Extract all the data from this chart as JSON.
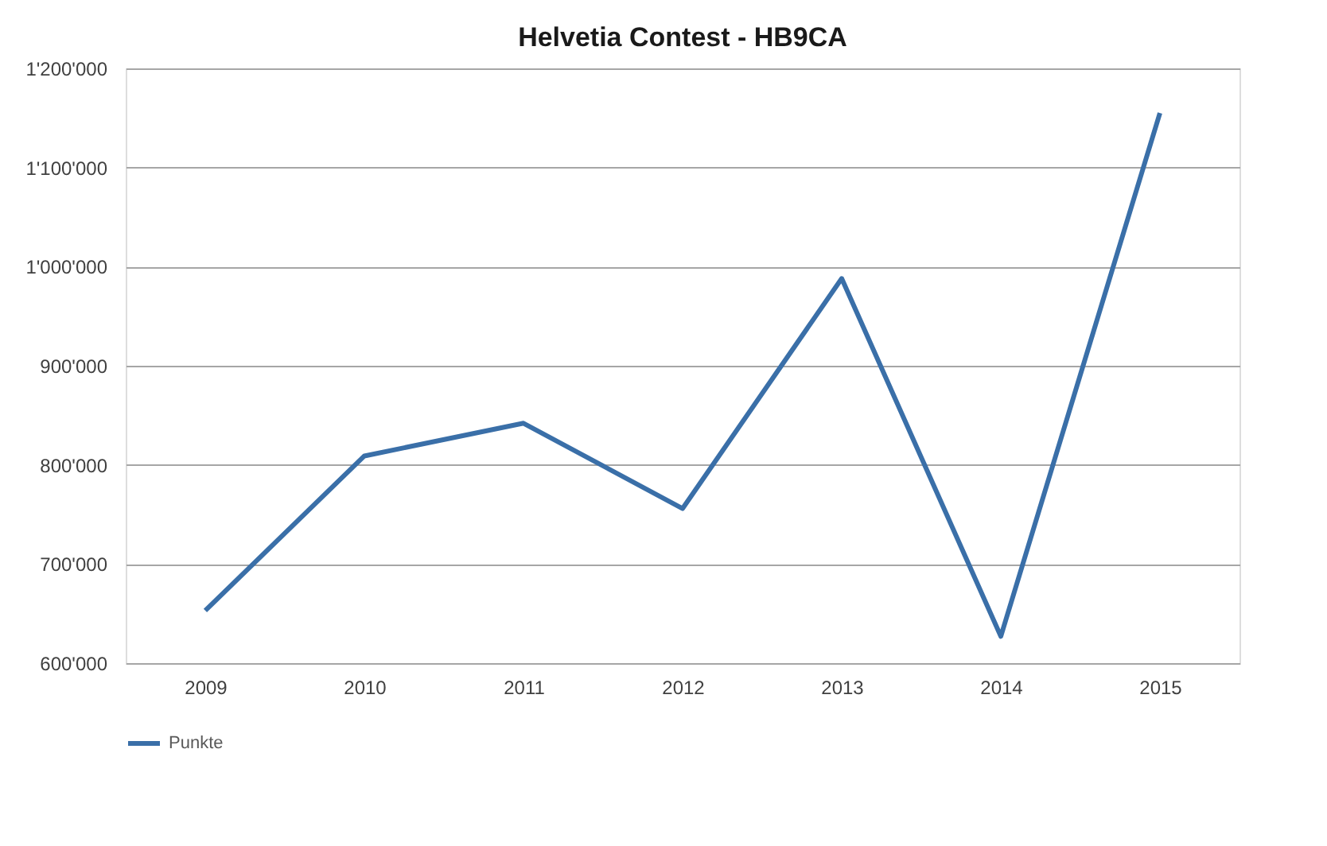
{
  "chart_data": {
    "type": "line",
    "title": "Helvetia Contest - HB9CA",
    "categories": [
      "2009",
      "2010",
      "2011",
      "2012",
      "2013",
      "2014",
      "2015"
    ],
    "series": [
      {
        "name": "Punkte",
        "color": "#3a6fa8",
        "values": [
          653000,
          809000,
          842000,
          756000,
          988000,
          627000,
          1155000
        ]
      }
    ],
    "ylim": [
      600000,
      1200000
    ],
    "yticks": [
      {
        "value": 600000,
        "label": "600'000"
      },
      {
        "value": 700000,
        "label": "700'000"
      },
      {
        "value": 800000,
        "label": "800'000"
      },
      {
        "value": 900000,
        "label": "900'000"
      },
      {
        "value": 1000000,
        "label": "1'000'000"
      },
      {
        "value": 1100000,
        "label": "1'100'000"
      },
      {
        "value": 1200000,
        "label": "1'200'000"
      }
    ],
    "grid": "y",
    "legend": "bottom",
    "marker": "none",
    "line_style": "solid"
  }
}
